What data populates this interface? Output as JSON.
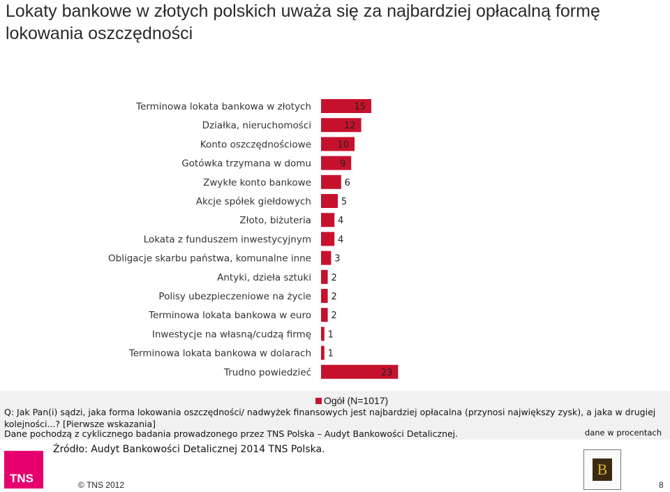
{
  "header": {
    "title": "Lokaty bankowe w złotych polskich uważa się za najbardziej opłacalną formę lokowania oszczędności"
  },
  "chart_data": {
    "type": "bar",
    "orientation": "horizontal",
    "categories": [
      "Terminowa lokata bankowa w złotych",
      "Działka, nieruchomości",
      "Konto oszczędnościowe",
      "Gotówka trzymana w domu",
      "Zwykłe konto bankowe",
      "Akcje spółek giełdowych",
      "Złoto, biżuteria",
      "Lokata z funduszem inwestycyjnym",
      "Obligacje skarbu państwa, komunalne inne",
      "Antyki, dzieła sztuki",
      "Polisy ubezpieczeniowe na życie",
      "Terminowa lokata bankowa w euro",
      "Inwestycje na własną/cudzą firmę",
      "Terminowa lokata bankowa w dolarach",
      "Trudno powiedzieć"
    ],
    "series": [
      {
        "name": "Ogół (N=1017)",
        "values": [
          15,
          12,
          10,
          9,
          6,
          5,
          4,
          4,
          3,
          2,
          2,
          2,
          1,
          1,
          23
        ],
        "color": "#c7122d"
      }
    ],
    "xlim": [
      0,
      25
    ],
    "grid": false,
    "legend_position": "bottom"
  },
  "legend": {
    "label": "Ogół (N=1017)"
  },
  "notes": {
    "question": "Q: Jak Pan(i) sądzi, jaka forma lokowania oszczędności/ nadwyżek finansowych jest najbardziej opłacalna (przynosi największy zysk), a jaka w drugiej kolejności...? [Pierwsze wskazania]",
    "data_source_line": "Dane pochodzą z cyklicznego badania prowadzonego przez TNS Polska – Audyt Bankowości Detalicznej.",
    "unit": "dane w procentach",
    "source": "Źródło: Audyt Bankowości Detalicznej 2014 TNS Polska."
  },
  "footer": {
    "logo_text": "TNS",
    "copyright": "© TNS 2012",
    "page_number": "8"
  }
}
